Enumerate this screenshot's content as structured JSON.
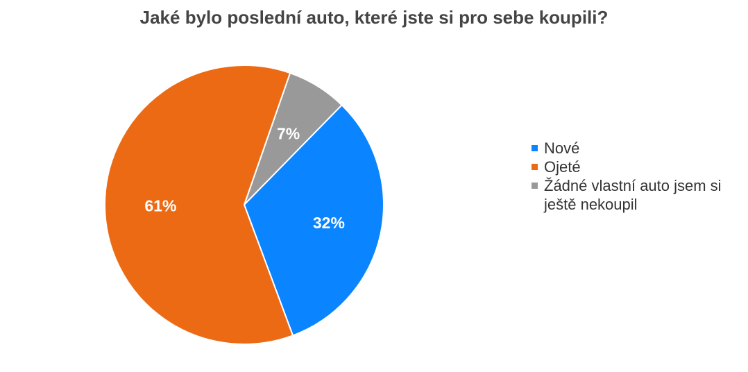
{
  "chart_data": {
    "type": "pie",
    "title": "Jaké bylo poslední auto, které jste si pro sebe koupili?",
    "legend_position": "right",
    "slices": [
      {
        "name": "Nové",
        "value": 32,
        "label": "32%",
        "color": "#0a84ff"
      },
      {
        "name": "Ojeté",
        "value": 61,
        "label": "61%",
        "color": "#ec6a13"
      },
      {
        "name": "Žádné vlastní auto jsem si ještě nekoupil",
        "value": 7,
        "label": "7%",
        "color": "#999999"
      }
    ]
  }
}
